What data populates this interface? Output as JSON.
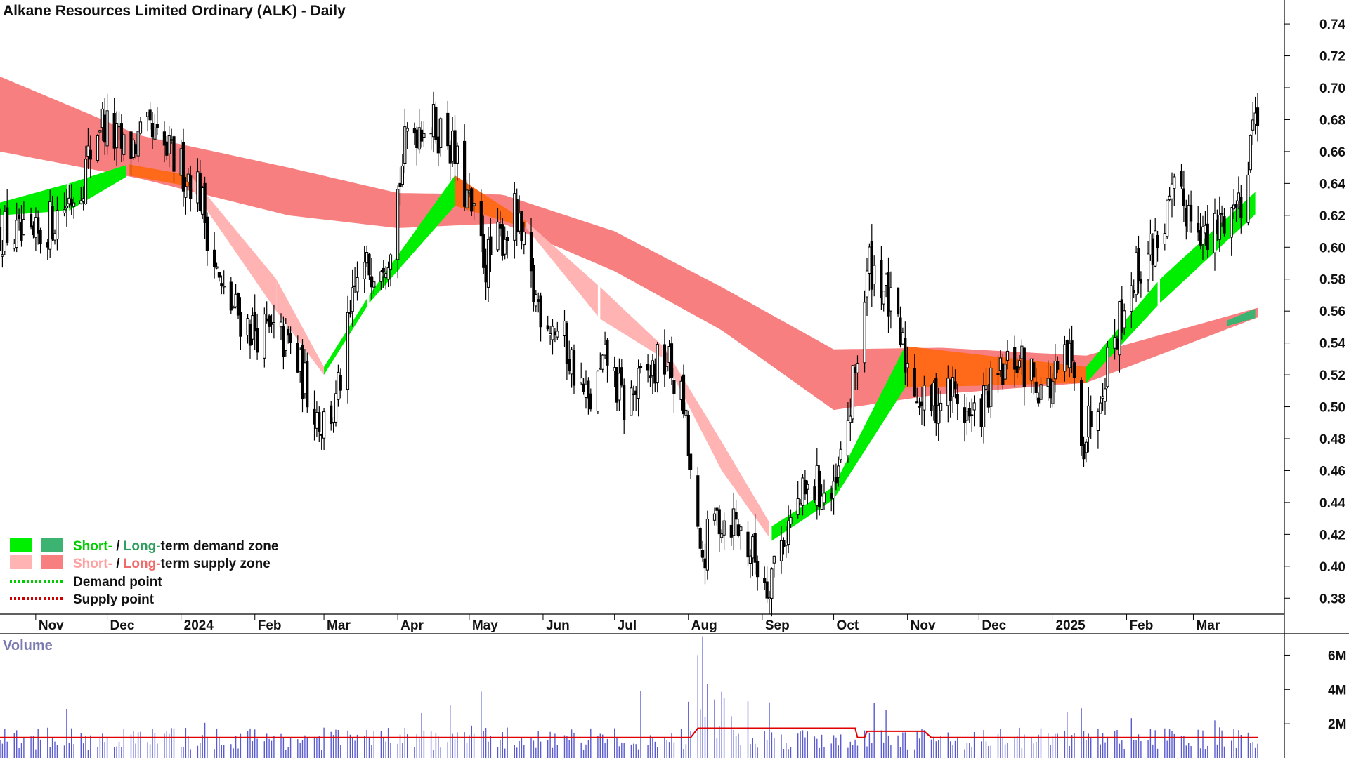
{
  "title": "Alkane Resources Limited Ordinary (ALK) - Daily",
  "volume_label": "Volume",
  "colors": {
    "short_demand": "#00ee00",
    "long_demand": "#3cb371",
    "short_supply": "#ffb3b3",
    "long_supply": "#f87f7f",
    "overlap": "#ff6a1a",
    "candle": "#000000",
    "volume_bar": "#5a5ad0",
    "volume_avg": "#e00000",
    "demand_point": "#00cc00",
    "supply_point": "#cc0000"
  },
  "legend": {
    "row1_short": "Short-",
    "row1_sep": " / ",
    "row1_long": "Long-",
    "row1_rest": "term demand zone",
    "row2_short": "Short-",
    "row2_sep": " / ",
    "row2_long": "Long-",
    "row2_rest": "term supply zone",
    "row3": "Demand point",
    "row4": "Supply point"
  },
  "chart_data": [
    {
      "type": "candlestick",
      "title": "Alkane Resources Limited Ordinary (ALK) - Daily",
      "y_ticks": [
        "0.74",
        "0.72",
        "0.70",
        "0.68",
        "0.66",
        "0.64",
        "0.62",
        "0.60",
        "0.58",
        "0.56",
        "0.54",
        "0.52",
        "0.50",
        "0.48",
        "0.46",
        "0.44",
        "0.42",
        "0.40",
        "0.38"
      ],
      "ylim": [
        0.37,
        0.755
      ],
      "x_ticks": [
        "Nov",
        "Dec",
        "2024",
        "Feb",
        "Mar",
        "Apr",
        "May",
        "Jun",
        "Jul",
        "Aug",
        "Sep",
        "Oct",
        "Nov",
        "Dec",
        "2025",
        "Feb",
        "Mar"
      ],
      "x_range": [
        "2023-10-17",
        "2025-03-28"
      ],
      "grid": false,
      "legend_position": "bottom-left",
      "price_key_points": [
        {
          "x": "2023-10-20",
          "y": 0.61
        },
        {
          "x": "2023-10-30",
          "y": 0.6
        },
        {
          "x": "2023-11-20",
          "y": 0.64
        },
        {
          "x": "2023-11-28",
          "y": 0.68
        },
        {
          "x": "2023-12-08",
          "y": 0.66
        },
        {
          "x": "2023-12-18",
          "y": 0.67
        },
        {
          "x": "2024-01-08",
          "y": 0.64
        },
        {
          "x": "2024-01-18",
          "y": 0.57
        },
        {
          "x": "2024-01-30",
          "y": 0.55
        },
        {
          "x": "2024-02-15",
          "y": 0.54
        },
        {
          "x": "2024-02-29",
          "y": 0.49
        },
        {
          "x": "2024-03-06",
          "y": 0.5
        },
        {
          "x": "2024-03-15",
          "y": 0.58
        },
        {
          "x": "2024-03-28",
          "y": 0.6
        },
        {
          "x": "2024-04-05",
          "y": 0.67
        },
        {
          "x": "2024-04-12",
          "y": 0.68
        },
        {
          "x": "2024-04-22",
          "y": 0.67
        },
        {
          "x": "2024-04-30",
          "y": 0.63
        },
        {
          "x": "2024-05-08",
          "y": 0.59
        },
        {
          "x": "2024-05-20",
          "y": 0.62
        },
        {
          "x": "2024-05-28",
          "y": 0.57
        },
        {
          "x": "2024-06-10",
          "y": 0.54
        },
        {
          "x": "2024-06-20",
          "y": 0.5
        },
        {
          "x": "2024-06-28",
          "y": 0.53
        },
        {
          "x": "2024-07-05",
          "y": 0.5
        },
        {
          "x": "2024-07-15",
          "y": 0.52
        },
        {
          "x": "2024-07-23",
          "y": 0.53
        },
        {
          "x": "2024-07-30",
          "y": 0.5
        },
        {
          "x": "2024-08-06",
          "y": 0.4
        },
        {
          "x": "2024-08-12",
          "y": 0.43
        },
        {
          "x": "2024-08-20",
          "y": 0.43
        },
        {
          "x": "2024-08-27",
          "y": 0.41
        },
        {
          "x": "2024-09-03",
          "y": 0.39
        },
        {
          "x": "2024-09-10",
          "y": 0.42
        },
        {
          "x": "2024-09-17",
          "y": 0.44
        },
        {
          "x": "2024-09-24",
          "y": 0.45
        },
        {
          "x": "2024-10-01",
          "y": 0.44
        },
        {
          "x": "2024-10-08",
          "y": 0.5
        },
        {
          "x": "2024-10-16",
          "y": 0.59
        },
        {
          "x": "2024-10-21",
          "y": 0.58
        },
        {
          "x": "2024-10-31",
          "y": 0.53
        },
        {
          "x": "2024-11-08",
          "y": 0.5
        },
        {
          "x": "2024-11-20",
          "y": 0.51
        },
        {
          "x": "2024-11-28",
          "y": 0.49
        },
        {
          "x": "2024-12-06",
          "y": 0.51
        },
        {
          "x": "2024-12-16",
          "y": 0.53
        },
        {
          "x": "2024-12-30",
          "y": 0.51
        },
        {
          "x": "2025-01-08",
          "y": 0.53
        },
        {
          "x": "2025-01-14",
          "y": 0.48
        },
        {
          "x": "2025-01-24",
          "y": 0.53
        },
        {
          "x": "2025-02-03",
          "y": 0.58
        },
        {
          "x": "2025-02-12",
          "y": 0.6
        },
        {
          "x": "2025-02-21",
          "y": 0.63
        },
        {
          "x": "2025-03-03",
          "y": 0.62
        },
        {
          "x": "2025-03-07",
          "y": 0.6
        },
        {
          "x": "2025-03-14",
          "y": 0.62
        },
        {
          "x": "2025-03-21",
          "y": 0.63
        },
        {
          "x": "2025-03-25",
          "y": 0.67
        },
        {
          "x": "2025-03-28",
          "y": 0.69
        }
      ],
      "long_term_zone": [
        {
          "x": "2023-10-17",
          "low": 0.66,
          "high": 0.707
        },
        {
          "x": "2023-12-15",
          "low": 0.643,
          "high": 0.67
        },
        {
          "x": "2024-02-15",
          "low": 0.62,
          "high": 0.65
        },
        {
          "x": "2024-04-01",
          "low": 0.612,
          "high": 0.634
        },
        {
          "x": "2024-05-15",
          "low": 0.615,
          "high": 0.633
        },
        {
          "x": "2024-07-01",
          "low": 0.585,
          "high": 0.61
        },
        {
          "x": "2024-08-15",
          "low": 0.548,
          "high": 0.575
        },
        {
          "x": "2024-10-01",
          "low": 0.498,
          "high": 0.536
        },
        {
          "x": "2024-11-15",
          "low": 0.508,
          "high": 0.537
        },
        {
          "x": "2025-01-15",
          "low": 0.515,
          "high": 0.532
        },
        {
          "x": "2025-03-28",
          "low": 0.556,
          "high": 0.562
        }
      ],
      "short_term_zone": [
        {
          "x": "2023-10-17",
          "low": 0.62,
          "high": 0.628
        },
        {
          "x": "2023-11-15",
          "low": 0.623,
          "high": 0.64
        },
        {
          "x": "2023-12-10",
          "low": 0.645,
          "high": 0.652
        },
        {
          "x": "2024-01-05",
          "low": 0.638,
          "high": 0.645
        },
        {
          "x": "2024-02-10",
          "low": 0.56,
          "high": 0.58
        },
        {
          "x": "2024-03-01",
          "low": 0.52,
          "high": 0.525
        },
        {
          "x": "2024-03-20",
          "low": 0.565,
          "high": 0.57
        },
        {
          "x": "2024-04-25",
          "low": 0.626,
          "high": 0.645
        },
        {
          "x": "2024-05-25",
          "low": 0.612,
          "high": 0.616
        },
        {
          "x": "2024-06-25",
          "low": 0.555,
          "high": 0.575
        },
        {
          "x": "2024-07-22",
          "low": 0.53,
          "high": 0.537
        },
        {
          "x": "2024-08-15",
          "low": 0.46,
          "high": 0.478
        },
        {
          "x": "2024-09-05",
          "low": 0.416,
          "high": 0.425
        },
        {
          "x": "2024-10-01",
          "low": 0.442,
          "high": 0.45
        },
        {
          "x": "2024-10-31",
          "low": 0.512,
          "high": 0.538
        },
        {
          "x": "2025-01-15",
          "low": 0.515,
          "high": 0.525
        },
        {
          "x": "2025-02-15",
          "low": 0.565,
          "high": 0.58
        },
        {
          "x": "2025-03-28",
          "low": 0.622,
          "high": 0.636
        }
      ],
      "volume": {
        "y_ticks": [
          "6M",
          "4M",
          "2M"
        ],
        "ylim": [
          0,
          7000000
        ],
        "notable_spikes": [
          {
            "x": "2024-08-05",
            "y": 6000000
          },
          {
            "x": "2024-08-07",
            "y": 7100000
          },
          {
            "x": "2024-08-09",
            "y": 4300000
          },
          {
            "x": "2024-10-18",
            "y": 3200000
          },
          {
            "x": "2025-01-13",
            "y": 2900000
          },
          {
            "x": "2025-03-10",
            "y": 2200000
          }
        ],
        "average_level": 1200000
      }
    }
  ]
}
